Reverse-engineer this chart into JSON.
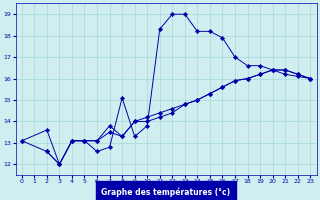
{
  "title": "Graphe des températures (°c)",
  "bg_color": "#d0eef0",
  "grid_color": "#aadddd",
  "line_color": "#0000aa",
  "axis_label_color": "#ffffff",
  "axis_bg_color": "#0000aa",
  "xlim": [
    -0.5,
    23.5
  ],
  "ylim": [
    11.5,
    19.5
  ],
  "xticks": [
    0,
    1,
    2,
    3,
    4,
    5,
    6,
    7,
    8,
    9,
    10,
    11,
    12,
    13,
    14,
    15,
    16,
    17,
    18,
    19,
    20,
    21,
    22,
    23
  ],
  "yticks": [
    12,
    13,
    14,
    15,
    16,
    17,
    18,
    19
  ],
  "line1_x": [
    0,
    2,
    3,
    4,
    5,
    6,
    7,
    8,
    9,
    10,
    11,
    12,
    13,
    14,
    15,
    16,
    17,
    18,
    19,
    20,
    21,
    22,
    23
  ],
  "line1_y": [
    13.1,
    13.6,
    12.0,
    13.1,
    13.1,
    12.6,
    12.8,
    15.1,
    13.3,
    13.8,
    18.3,
    19.0,
    19.0,
    18.2,
    18.2,
    17.9,
    17.0,
    16.6,
    16.6,
    16.4,
    16.2,
    16.1,
    16.0
  ],
  "line2_x": [
    0,
    2,
    3,
    4,
    5,
    6,
    7,
    8,
    9,
    10,
    11,
    12,
    13,
    14,
    15,
    16,
    17,
    18,
    19,
    20,
    21,
    22,
    23
  ],
  "line2_y": [
    13.1,
    12.6,
    12.0,
    13.1,
    13.1,
    13.1,
    13.8,
    13.3,
    14.0,
    14.0,
    14.2,
    14.4,
    14.8,
    15.0,
    15.3,
    15.6,
    15.9,
    16.0,
    16.2,
    16.4,
    16.4,
    16.2,
    16.0
  ],
  "line3_x": [
    2,
    3,
    4,
    5,
    6,
    7,
    8,
    9,
    10,
    11,
    12,
    13,
    14,
    15,
    16,
    17,
    18,
    19,
    20,
    21,
    22,
    23
  ],
  "line3_y": [
    12.6,
    12.0,
    13.1,
    13.1,
    13.1,
    13.5,
    13.3,
    14.0,
    14.2,
    14.4,
    14.6,
    14.8,
    15.0,
    15.3,
    15.6,
    15.9,
    16.0,
    16.2,
    16.4,
    16.4,
    16.2,
    16.0
  ]
}
